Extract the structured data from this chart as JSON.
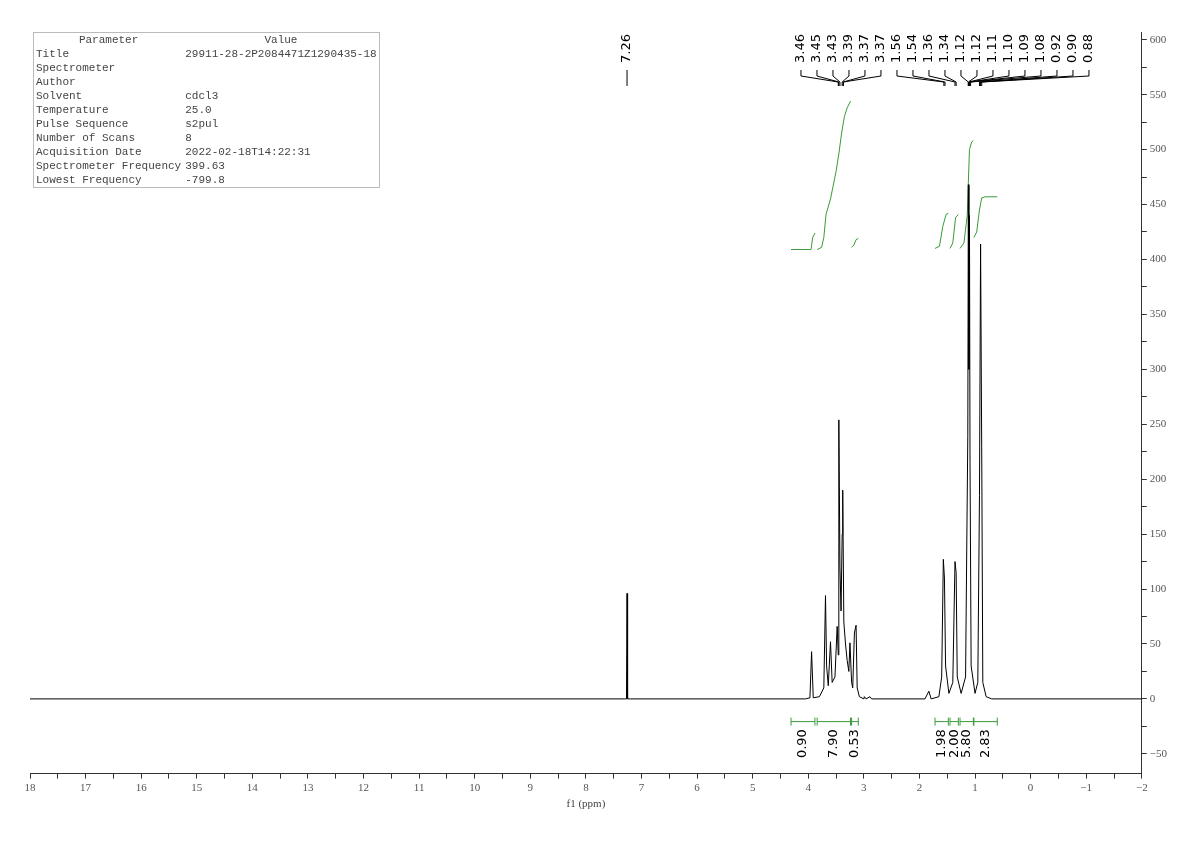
{
  "chart_data": {
    "type": "line",
    "xlabel": "f1 (ppm)",
    "xlim": [
      18,
      -2
    ],
    "ylim": [
      -68,
      607
    ],
    "xticks": [
      18,
      {
        "value": 17.5,
        "label": null
      },
      17,
      {
        "value": 16.5,
        "label": null
      },
      16,
      {
        "value": 15.5,
        "label": null
      },
      15,
      {
        "value": 14.5,
        "label": null
      },
      14,
      {
        "value": 13.5,
        "label": null
      },
      13,
      {
        "value": 12.5,
        "label": null
      },
      12,
      {
        "value": 11.5,
        "label": null
      },
      11,
      {
        "value": 10.5,
        "label": null
      },
      10,
      {
        "value": 9.5,
        "label": null
      },
      9,
      {
        "value": 8.5,
        "label": null
      },
      8,
      {
        "value": 7.5,
        "label": null
      },
      7,
      {
        "value": 6.5,
        "label": null
      },
      6,
      {
        "value": 5.5,
        "label": null
      },
      5,
      {
        "value": 4.5,
        "label": null
      },
      4,
      {
        "value": 3.5,
        "label": null
      },
      3,
      {
        "value": 2.5,
        "label": null
      },
      2,
      {
        "value": 1.5,
        "label": null
      },
      1,
      {
        "value": 0.5,
        "label": null
      },
      0,
      {
        "value": -0.5,
        "label": null
      },
      {
        "value": -1,
        "label": "−1"
      },
      {
        "value": -1.5,
        "label": null
      },
      {
        "value": -2,
        "label": "−2"
      }
    ],
    "yticks": [
      {
        "value": -50,
        "label": "−50"
      },
      {
        "value": -25,
        "label": null
      },
      0,
      {
        "value": 25,
        "label": null
      },
      50,
      {
        "value": 75,
        "label": null
      },
      100,
      {
        "value": 125,
        "label": null
      },
      150,
      {
        "value": 175,
        "label": null
      },
      200,
      {
        "value": 225,
        "label": null
      },
      250,
      {
        "value": 275,
        "label": null
      },
      300,
      {
        "value": 325,
        "label": null
      },
      350,
      {
        "value": 375,
        "label": null
      },
      400,
      {
        "value": 425,
        "label": null
      },
      450,
      {
        "value": 475,
        "label": null
      },
      500,
      {
        "value": 525,
        "label": null
      },
      550,
      {
        "value": 575,
        "label": null
      },
      600
    ],
    "grid": false,
    "legend": false,
    "marker": "none",
    "line_style": "solid",
    "series": [
      {
        "color": "#000000",
        "x": [
          18,
          7.3,
          7.27,
          7.26,
          7.25,
          7.2,
          4.05,
          3.97,
          3.94,
          3.91,
          3.8,
          3.72,
          3.69,
          3.67,
          3.64,
          3.6,
          3.57,
          3.52,
          3.48,
          3.46,
          3.45,
          3.43,
          3.41,
          3.39,
          3.38,
          3.36,
          3.33,
          3.3,
          3.27,
          3.25,
          3.22,
          3.2,
          3.17,
          3.14,
          3.12,
          3.08,
          3.0,
          2.99,
          2.96,
          2.89,
          2.86,
          1.9,
          1.83,
          1.79,
          1.65,
          1.6,
          1.57,
          1.55,
          1.53,
          1.47,
          1.4,
          1.36,
          1.34,
          1.32,
          1.25,
          1.17,
          1.13,
          1.12,
          1.11,
          1.1,
          1.09,
          1.07,
          1.0,
          0.95,
          0.92,
          0.9,
          0.88,
          0.86,
          0.8,
          0.7,
          -2
        ],
        "values": [
          0,
          0,
          0,
          96,
          0,
          0,
          0,
          1,
          43,
          1,
          2,
          10,
          94,
          30,
          12,
          52,
          15,
          20,
          66,
          40,
          254,
          120,
          80,
          150,
          190,
          70,
          50,
          35,
          25,
          51,
          15,
          10,
          60,
          67,
          10,
          2,
          0,
          2,
          0,
          2,
          0,
          0,
          7,
          0,
          2,
          20,
          127,
          110,
          30,
          5,
          15,
          125,
          115,
          20,
          5,
          20,
          240,
          468,
          300,
          440,
          215,
          30,
          5,
          15,
          185,
          414,
          230,
          15,
          2,
          0,
          0
        ]
      },
      {
        "color": "#3a9a3a",
        "x": [
          4.31,
          3.95,
          3.92,
          3.88
        ],
        "values": [
          409,
          409,
          420,
          424
        ]
      },
      {
        "color": "#3a9a3a",
        "x": [
          3.84,
          3.76,
          3.72,
          3.68,
          3.6,
          3.5,
          3.45,
          3.4,
          3.35,
          3.3,
          3.24
        ],
        "values": [
          409,
          411,
          420,
          441,
          455,
          480,
          496,
          515,
          530,
          538,
          544
        ]
      },
      {
        "color": "#3a9a3a",
        "x": [
          3.22,
          3.18,
          3.14,
          3.1
        ],
        "values": [
          411,
          413,
          418,
          419
        ]
      },
      {
        "color": "#3a9a3a",
        "x": [
          1.72,
          1.64,
          1.58,
          1.52,
          1.48
        ],
        "values": [
          410,
          412,
          430,
          441,
          442
        ]
      },
      {
        "color": "#3a9a3a",
        "x": [
          1.45,
          1.4,
          1.35,
          1.3
        ],
        "values": [
          410,
          415,
          438,
          441
        ]
      },
      {
        "color": "#3a9a3a",
        "x": [
          1.27,
          1.2,
          1.14,
          1.12,
          1.1,
          1.06,
          1.03
        ],
        "values": [
          410,
          415,
          440,
          470,
          500,
          507,
          508
        ]
      },
      {
        "color": "#3a9a3a",
        "x": [
          1.02,
          0.97,
          0.92,
          0.88,
          0.82,
          0.6
        ],
        "values": [
          420,
          425,
          445,
          456,
          457,
          457
        ]
      }
    ],
    "annotations": [
      "Parameter\tValue",
      "Title\t29911-28-2P2084471Z1290435-18",
      "Spectrometer\t",
      "Author\t",
      "Solvent\tcdcl3",
      "Temperature\t25.0",
      "Pulse Sequence\ts2pul",
      "Number of Scans\t8",
      "Acquisition Date\t2022-02-18T14:22:31",
      "Spectrometer Frequency\t399.63",
      "Lowest Frequency\t-799.8",
      {
        "text": "7.26",
        "x": 7.26
      },
      {
        "text": "3.46",
        "x": 3.46
      },
      {
        "text": "3.45",
        "x": 3.45
      },
      {
        "text": "3.43",
        "x": 3.43
      },
      {
        "text": "3.39",
        "x": 3.39
      },
      {
        "text": "3.37",
        "x": 3.37
      },
      {
        "text": "3.37",
        "x": 3.37
      },
      {
        "text": "1.56",
        "x": 1.56
      },
      {
        "text": "1.54",
        "x": 1.54
      },
      {
        "text": "1.36",
        "x": 1.36
      },
      {
        "text": "1.34",
        "x": 1.34
      },
      {
        "text": "1.12",
        "x": 1.12
      },
      {
        "text": "1.12",
        "x": 1.12
      },
      {
        "text": "1.11",
        "x": 1.11
      },
      {
        "text": "1.10",
        "x": 1.1
      },
      {
        "text": "1.09",
        "x": 1.09
      },
      {
        "text": "1.08",
        "x": 1.08
      },
      {
        "text": "0.92",
        "x": 0.92
      },
      {
        "text": "0.90",
        "x": 0.9
      },
      {
        "text": "0.88",
        "x": 0.88
      },
      "0.90",
      "7.90",
      "0.53",
      "1.98",
      "2.00",
      "5.80",
      "2.83"
    ]
  }
}
